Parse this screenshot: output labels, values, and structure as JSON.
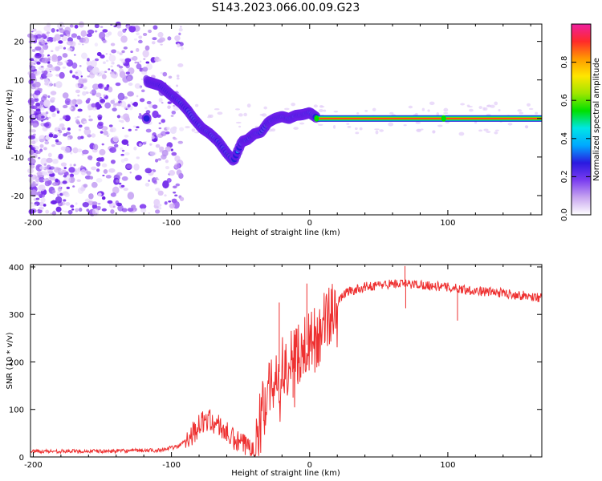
{
  "title": "S143.2023.066.00.09.G23",
  "chart_data": [
    {
      "type": "heatmap",
      "xlabel": "Height of straight line (km)",
      "ylabel": "Frequency (Hz)",
      "xlim": [
        -202,
        168
      ],
      "ylim": [
        -25,
        24.5
      ],
      "xticks": [
        "-200",
        "-100",
        "0",
        "100"
      ],
      "yticks": [
        "-20",
        "-10",
        "0",
        "10",
        "20"
      ],
      "colorbar": {
        "label": "Normalized spectral amplitude",
        "range": [
          0,
          1
        ],
        "ticks": [
          "0.0",
          "0.2",
          "0.4",
          "0.6",
          "0.8"
        ],
        "colors": [
          "#ffffff",
          "#c8a6f0",
          "#7a3cf0",
          "#2a1ae0",
          "#00a8ff",
          "#00e6e6",
          "#00e000",
          "#a0e600",
          "#ffe600",
          "#ff9a00",
          "#ff2a2a",
          "#ee1fa0"
        ]
      },
      "ridge": [
        {
          "x": -117,
          "y": 9.5
        },
        {
          "x": -108,
          "y": 8.5
        },
        {
          "x": -100,
          "y": 6
        },
        {
          "x": -93,
          "y": 4
        },
        {
          "x": -88,
          "y": 2
        },
        {
          "x": -84,
          "y": 0
        },
        {
          "x": -78,
          "y": -2.5
        },
        {
          "x": -72,
          "y": -4
        },
        {
          "x": -66,
          "y": -6
        },
        {
          "x": -60,
          "y": -9
        },
        {
          "x": -55,
          "y": -11
        },
        {
          "x": -49,
          "y": -6
        },
        {
          "x": -45,
          "y": -5.5
        },
        {
          "x": -40,
          "y": -4
        },
        {
          "x": -35,
          "y": -3.5
        },
        {
          "x": -30,
          "y": -1
        },
        {
          "x": -25,
          "y": 0
        },
        {
          "x": -20,
          "y": 0.5
        },
        {
          "x": -15,
          "y": 0
        },
        {
          "x": -10,
          "y": 0.8
        },
        {
          "x": -5,
          "y": 1
        },
        {
          "x": 0,
          "y": 1.5
        },
        {
          "x": 6,
          "y": 0
        },
        {
          "x": 168,
          "y": 0
        }
      ]
    },
    {
      "type": "line",
      "xlabel": "Height of straight line (km)",
      "ylabel": "SNR (10 * v/v)",
      "xlim": [
        -202,
        168
      ],
      "ylim": [
        0,
        405
      ],
      "xticks": [
        "-200",
        "-100",
        "0",
        "100"
      ],
      "yticks": [
        "0",
        "100",
        "200",
        "300",
        "400"
      ],
      "color": "#ee3030",
      "profile": [
        {
          "x": -202,
          "y": 12
        },
        {
          "x": -150,
          "y": 12
        },
        {
          "x": -110,
          "y": 14
        },
        {
          "x": -95,
          "y": 22
        },
        {
          "x": -85,
          "y": 50
        },
        {
          "x": -75,
          "y": 80
        },
        {
          "x": -65,
          "y": 65
        },
        {
          "x": -55,
          "y": 35
        },
        {
          "x": -45,
          "y": 22
        },
        {
          "x": -38,
          "y": 30
        },
        {
          "x": -33,
          "y": 120
        },
        {
          "x": -25,
          "y": 170
        },
        {
          "x": -15,
          "y": 200
        },
        {
          "x": -5,
          "y": 230
        },
        {
          "x": 5,
          "y": 250
        },
        {
          "x": 15,
          "y": 300
        },
        {
          "x": 25,
          "y": 345
        },
        {
          "x": 40,
          "y": 358
        },
        {
          "x": 60,
          "y": 365
        },
        {
          "x": 80,
          "y": 363
        },
        {
          "x": 100,
          "y": 357
        },
        {
          "x": 120,
          "y": 350
        },
        {
          "x": 140,
          "y": 345
        },
        {
          "x": 168,
          "y": 335
        }
      ],
      "spikes": [
        {
          "x": 69,
          "y": 402
        },
        {
          "x": 69.5,
          "y": 313
        },
        {
          "x": 107,
          "y": 287
        },
        {
          "x": -2,
          "y": 365
        },
        {
          "x": -22,
          "y": 325
        },
        {
          "x": -12,
          "y": 125
        }
      ]
    }
  ]
}
